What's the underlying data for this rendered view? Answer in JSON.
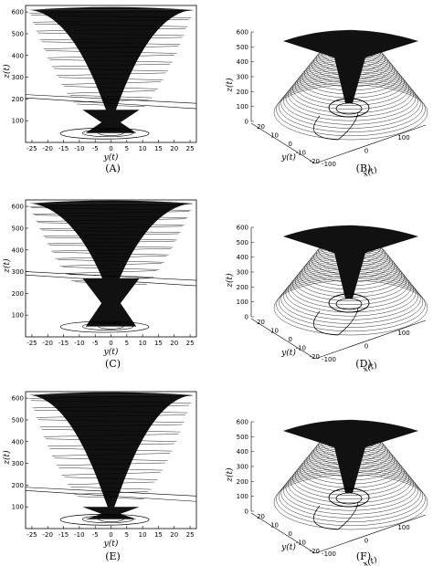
{
  "chart_data": [
    {
      "caption": "(A)",
      "type": "line",
      "view": "2d",
      "xlabel": "y(t)",
      "ylabel": "z(t)",
      "xlim": [
        -27,
        27
      ],
      "ylim": [
        0,
        630
      ],
      "xticks": [
        "-25",
        "-20",
        "-15",
        "-10",
        "-5",
        "0",
        "5",
        "10",
        "15",
        "20",
        "25"
      ],
      "yticks": [
        "100",
        "200",
        "300",
        "400",
        "500",
        "600"
      ],
      "attractor": {
        "top_z": 610,
        "funnel_bottom_z": 120,
        "lower_lobe_top_z": 150,
        "lower_lobe_bottom_z": 35,
        "half_width_y": 26
      }
    },
    {
      "caption": "(B)",
      "type": "line",
      "view": "3d",
      "xlabel": "x(t)",
      "ylabel": "y(t)",
      "zlabel": "z(t)",
      "xticks": [
        "-100",
        "0",
        "100"
      ],
      "yticks": [
        "-20",
        "-10",
        "0",
        "10",
        "20"
      ],
      "zticks": [
        "0",
        "100",
        "200",
        "300",
        "400",
        "500",
        "600"
      ]
    },
    {
      "caption": "(C)",
      "type": "line",
      "view": "2d",
      "xlabel": "y(t)",
      "ylabel": "z(t)",
      "xlim": [
        -27,
        27
      ],
      "ylim": [
        0,
        630
      ],
      "xticks": [
        "-25",
        "-20",
        "-15",
        "-10",
        "-5",
        "0",
        "5",
        "10",
        "15",
        "20",
        "25"
      ],
      "yticks": [
        "100",
        "200",
        "300",
        "400",
        "500",
        "600"
      ],
      "attractor": {
        "top_z": 615,
        "funnel_bottom_z": 200,
        "lower_lobe_top_z": 270,
        "lower_lobe_bottom_z": 40,
        "half_width_y": 26
      }
    },
    {
      "caption": "(D)",
      "type": "line",
      "view": "3d",
      "xlabel": "x(t)",
      "ylabel": "y(t)",
      "zlabel": "z(t)",
      "xticks": [
        "-100",
        "0",
        "100"
      ],
      "yticks": [
        "-20",
        "-10",
        "0",
        "10",
        "20"
      ],
      "zticks": [
        "0",
        "100",
        "200",
        "300",
        "400",
        "500",
        "600"
      ]
    },
    {
      "caption": "(E)",
      "type": "line",
      "view": "2d",
      "xlabel": "y(t)",
      "ylabel": "z(t)",
      "xlim": [
        -27,
        27
      ],
      "ylim": [
        0,
        630
      ],
      "xticks": [
        "-25",
        "-20",
        "-15",
        "-10",
        "-5",
        "0",
        "5",
        "10",
        "15",
        "20",
        "25"
      ],
      "yticks": [
        "100",
        "200",
        "300",
        "400",
        "500",
        "600"
      ],
      "attractor": {
        "top_z": 615,
        "funnel_bottom_z": 90,
        "lower_lobe_top_z": 100,
        "lower_lobe_bottom_z": 35,
        "half_width_y": 26
      }
    },
    {
      "caption": "(F)",
      "type": "line",
      "view": "3d",
      "xlabel": "x(t)",
      "ylabel": "y(t)",
      "zlabel": "z(t)",
      "xticks": [
        "-100",
        "0",
        "100"
      ],
      "yticks": [
        "-20",
        "-10",
        "0",
        "10",
        "20"
      ],
      "zticks": [
        "0",
        "100",
        "200",
        "300",
        "400",
        "500",
        "600"
      ]
    }
  ]
}
